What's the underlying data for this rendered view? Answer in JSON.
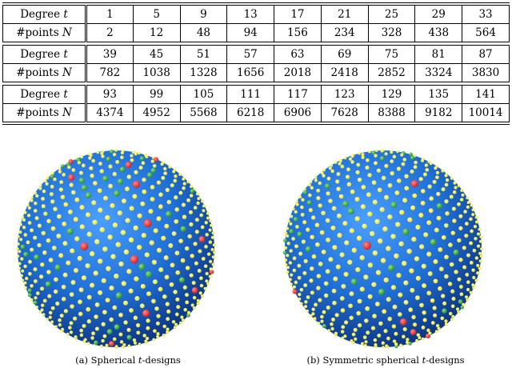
{
  "table": {
    "row_labels": {
      "degree": "Degree",
      "degree_var": "t",
      "points": "#points",
      "points_var": "N"
    },
    "blocks": [
      {
        "t": [
          "1",
          "5",
          "9",
          "13",
          "17",
          "21",
          "25",
          "29",
          "33"
        ],
        "n": [
          "2",
          "12",
          "48",
          "94",
          "156",
          "234",
          "328",
          "438",
          "564"
        ]
      },
      {
        "t": [
          "39",
          "45",
          "51",
          "57",
          "63",
          "69",
          "75",
          "81",
          "87"
        ],
        "n": [
          "782",
          "1038",
          "1328",
          "1656",
          "2018",
          "2418",
          "2852",
          "3324",
          "3830"
        ]
      },
      {
        "t": [
          "93",
          "99",
          "105",
          "111",
          "117",
          "123",
          "129",
          "135",
          "141"
        ],
        "n": [
          "4374",
          "4952",
          "5568",
          "6218",
          "6906",
          "7628",
          "8388",
          "9182",
          "10014"
        ]
      }
    ]
  },
  "figures": [
    {
      "caption_prefix": "(a) Spherical ",
      "caption_var": "t",
      "caption_suffix": "-designs"
    },
    {
      "caption_prefix": "(b) Symmetric spherical ",
      "caption_var": "t",
      "caption_suffix": "-designs"
    }
  ],
  "colors": {
    "sphere": "#1f6fd6",
    "point_regular": "#e8e02a",
    "point_green": "#1f8a1f",
    "point_red": "#d41818"
  }
}
